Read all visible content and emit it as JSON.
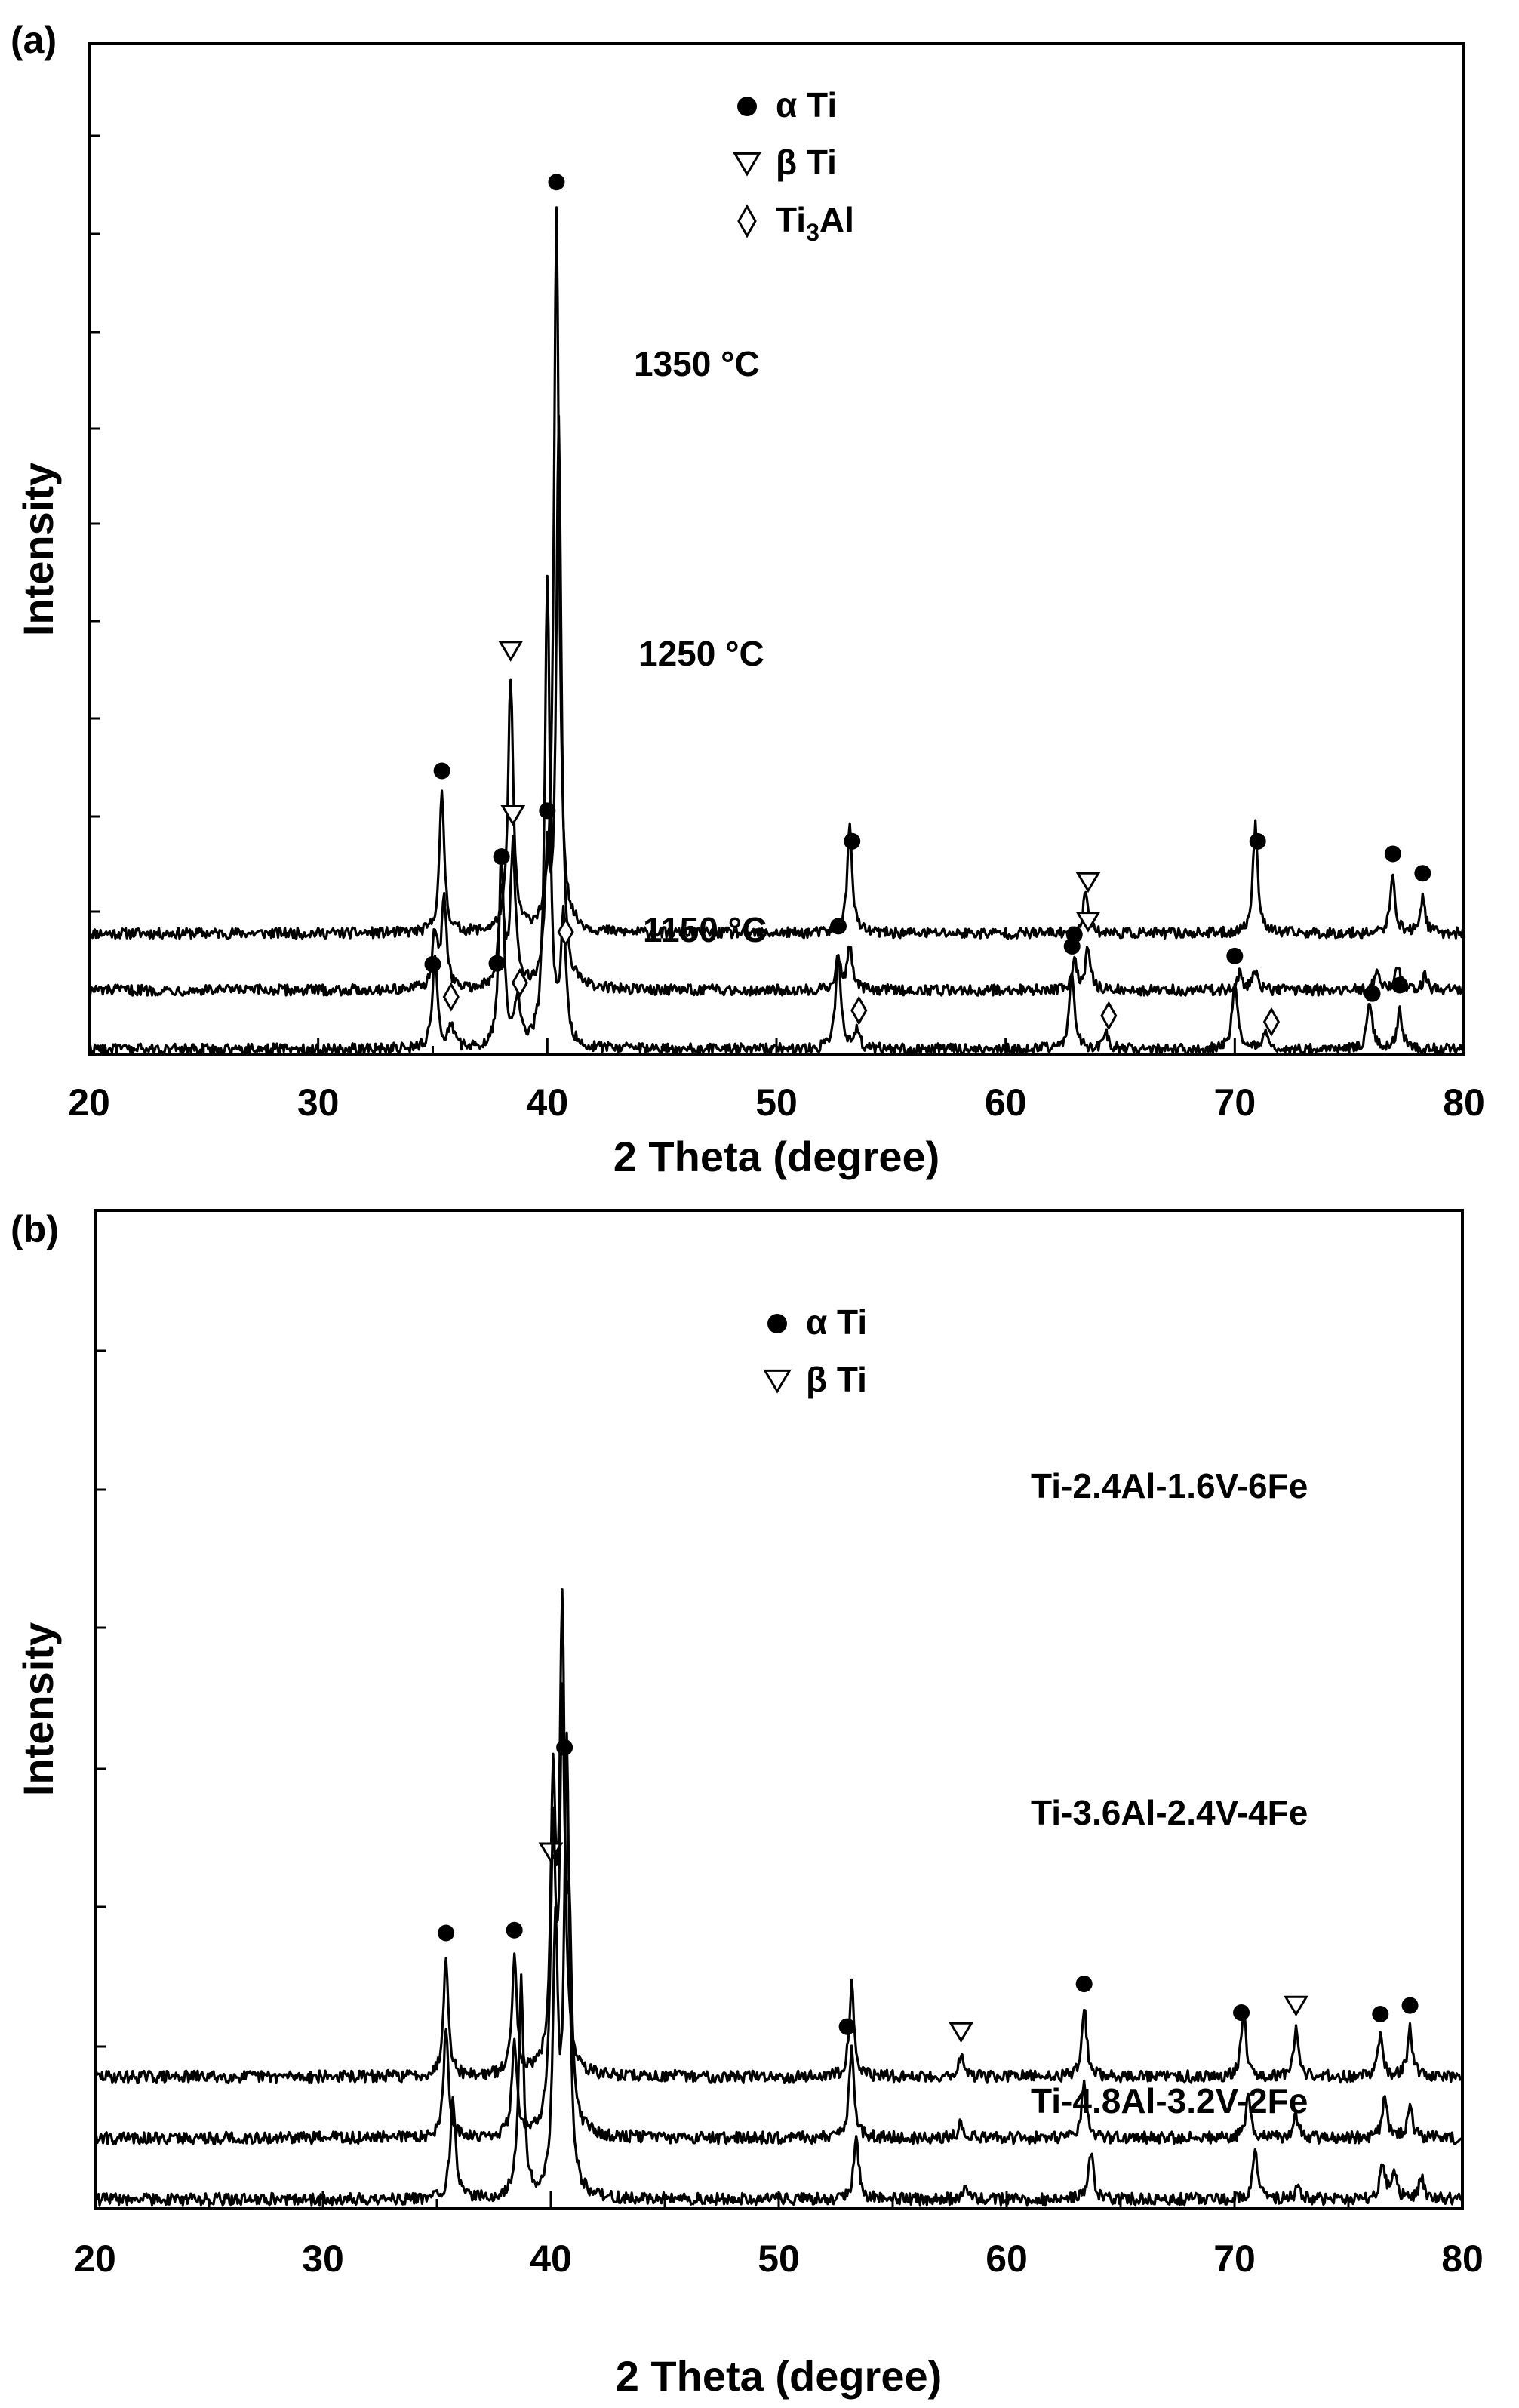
{
  "chart_data": [
    {
      "type": "line",
      "panel_label": "(a)",
      "xlabel": "2 Theta (degree)",
      "ylabel": "Intensity",
      "xlim": [
        20,
        80
      ],
      "x_ticks": [
        "20",
        "30",
        "40",
        "50",
        "60",
        "70",
        "80"
      ],
      "legend": {
        "placement": "top-center",
        "entries": [
          {
            "marker": "filled-circle",
            "label_main": "α Ti",
            "label_sub": ""
          },
          {
            "marker": "open-down-triangle",
            "label_main": "β Ti",
            "label_sub": ""
          },
          {
            "marker": "open-diamond",
            "label_main": "Ti",
            "label_sub": "3",
            "label_tail": "Al"
          }
        ]
      },
      "series": [
        {
          "name": "1350 °C",
          "baseline": 0.62,
          "peaks": [
            [
              35.4,
              0.7
            ],
            [
              38.4,
              1.3
            ],
            [
              40.4,
              3.7
            ],
            [
              53.2,
              0.55
            ],
            [
              63.5,
              0.22
            ],
            [
              70.9,
              0.55
            ],
            [
              76.9,
              0.28
            ],
            [
              78.2,
              0.18
            ]
          ],
          "markers": [
            {
              "x": 35.4,
              "marker": "filled-circle"
            },
            {
              "x": 38.4,
              "marker": "open-down-triangle"
            },
            {
              "x": 40.4,
              "marker": "filled-circle"
            },
            {
              "x": 53.3,
              "marker": "filled-circle"
            },
            {
              "x": 63.6,
              "marker": "open-down-triangle"
            },
            {
              "x": 71.0,
              "marker": "filled-circle"
            },
            {
              "x": 76.9,
              "marker": "filled-circle"
            },
            {
              "x": 78.2,
              "marker": "filled-circle"
            }
          ]
        },
        {
          "name": "1250 °C",
          "baseline": 0.33,
          "peaks": [
            [
              35.1,
              0.28
            ],
            [
              35.5,
              0.45
            ],
            [
              38.0,
              0.5
            ],
            [
              38.5,
              0.72
            ],
            [
              40.0,
              0.6
            ],
            [
              40.5,
              2.9
            ],
            [
              52.7,
              0.16
            ],
            [
              53.2,
              0.22
            ],
            [
              63.0,
              0.15
            ],
            [
              63.6,
              0.22
            ],
            [
              70.2,
              0.08
            ],
            [
              70.9,
              0.1
            ],
            [
              76.2,
              0.09
            ],
            [
              77.1,
              0.13
            ],
            [
              78.3,
              0.07
            ]
          ],
          "markers": [
            {
              "x": 38.0,
              "marker": "filled-circle"
            },
            {
              "x": 38.5,
              "marker": "open-down-triangle"
            },
            {
              "x": 40.0,
              "marker": "filled-circle"
            },
            {
              "x": 63.0,
              "marker": "filled-circle"
            },
            {
              "x": 63.6,
              "marker": "open-down-triangle"
            }
          ]
        },
        {
          "name": "1150 °C",
          "baseline": 0.03,
          "peaks": [
            [
              35.1,
              0.48
            ],
            [
              35.8,
              0.12
            ],
            [
              38.0,
              1.0
            ],
            [
              38.7,
              0.25
            ],
            [
              40.0,
              2.4
            ],
            [
              40.7,
              0.65
            ],
            [
              52.7,
              0.5
            ],
            [
              53.5,
              0.1
            ],
            [
              62.9,
              0.4
            ],
            [
              64.4,
              0.07
            ],
            [
              70.0,
              0.35
            ],
            [
              71.3,
              0.08
            ],
            [
              75.9,
              0.25
            ],
            [
              77.2,
              0.2
            ]
          ],
          "markers": [
            {
              "x": 35.0,
              "marker": "filled-circle"
            },
            {
              "x": 35.8,
              "marker": "open-diamond"
            },
            {
              "x": 37.8,
              "marker": "filled-circle"
            },
            {
              "x": 38.8,
              "marker": "open-diamond"
            },
            {
              "x": 40.8,
              "marker": "open-diamond"
            },
            {
              "x": 52.7,
              "marker": "filled-circle"
            },
            {
              "x": 53.6,
              "marker": "open-diamond"
            },
            {
              "x": 62.9,
              "marker": "filled-circle"
            },
            {
              "x": 64.5,
              "marker": "open-diamond"
            },
            {
              "x": 70.0,
              "marker": "filled-circle"
            },
            {
              "x": 71.6,
              "marker": "open-diamond"
            },
            {
              "x": 76.0,
              "marker": "filled-circle"
            },
            {
              "x": 77.2,
              "marker": "filled-circle"
            }
          ]
        }
      ]
    },
    {
      "type": "line",
      "panel_label": "(b)",
      "xlabel": "2 Theta (degree)",
      "ylabel": "Intensity",
      "xlim": [
        20,
        80
      ],
      "x_ticks": [
        "20",
        "30",
        "40",
        "50",
        "60",
        "70",
        "80"
      ],
      "legend": {
        "placement": "top-center",
        "entries": [
          {
            "marker": "filled-circle",
            "label_main": "α Ti",
            "label_sub": ""
          },
          {
            "marker": "open-down-triangle",
            "label_main": "β Ti",
            "label_sub": ""
          }
        ]
      },
      "series": [
        {
          "name": "Ti-2.4Al-1.6V-6Fe",
          "baseline": 0.6,
          "peaks": [
            [
              35.4,
              0.55
            ],
            [
              38.4,
              0.55
            ],
            [
              40.1,
              1.25
            ],
            [
              40.5,
              2.1
            ],
            [
              53.2,
              0.42
            ],
            [
              58.0,
              0.1
            ],
            [
              63.4,
              0.32
            ],
            [
              70.4,
              0.3
            ],
            [
              72.7,
              0.22
            ],
            [
              76.4,
              0.18
            ],
            [
              77.7,
              0.22
            ]
          ],
          "markers": [
            {
              "x": 35.4,
              "marker": "filled-circle"
            },
            {
              "x": 38.4,
              "marker": "filled-circle"
            },
            {
              "x": 40.0,
              "marker": "open-down-triangle"
            },
            {
              "x": 40.6,
              "marker": "filled-circle"
            },
            {
              "x": 53.0,
              "marker": "filled-circle"
            },
            {
              "x": 58.0,
              "marker": "open-down-triangle"
            },
            {
              "x": 63.4,
              "marker": "filled-circle"
            },
            {
              "x": 70.3,
              "marker": "filled-circle"
            },
            {
              "x": 72.7,
              "marker": "open-down-triangle"
            },
            {
              "x": 76.4,
              "marker": "filled-circle"
            },
            {
              "x": 77.7,
              "marker": "filled-circle"
            }
          ]
        },
        {
          "name": "Ti-3.6Al-2.4V-4Fe",
          "baseline": 0.32,
          "peaks": [
            [
              35.4,
              0.5
            ],
            [
              38.4,
              0.45
            ],
            [
              40.1,
              1.3
            ],
            [
              40.5,
              1.8
            ],
            [
              40.8,
              0.85
            ],
            [
              53.2,
              0.42
            ],
            [
              58.0,
              0.07
            ],
            [
              63.4,
              0.25
            ],
            [
              70.6,
              0.2
            ],
            [
              72.7,
              0.1
            ],
            [
              76.6,
              0.18
            ],
            [
              77.7,
              0.14
            ]
          ],
          "markers": []
        },
        {
          "name": "Ti-4.8Al-3.2V-2Fe",
          "baseline": 0.04,
          "peaks": [
            [
              35.7,
              0.48
            ],
            [
              38.7,
              1.0
            ],
            [
              40.2,
              1.2
            ],
            [
              40.7,
              2.05
            ],
            [
              53.4,
              0.28
            ],
            [
              58.2,
              0.04
            ],
            [
              63.7,
              0.22
            ],
            [
              70.9,
              0.22
            ],
            [
              72.8,
              0.06
            ],
            [
              76.5,
              0.17
            ],
            [
              77.0,
              0.14
            ],
            [
              78.2,
              0.1
            ]
          ],
          "markers": []
        }
      ]
    }
  ]
}
